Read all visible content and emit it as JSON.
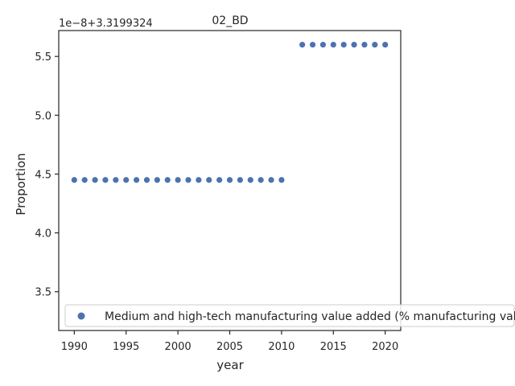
{
  "chart_data": {
    "type": "scatter",
    "title": "02_BD",
    "xlabel": "year",
    "ylabel": "Proportion",
    "offset_label": "1e−8+3.3199324",
    "xlim": [
      1988.5,
      2021.5
    ],
    "ylim": [
      3.17,
      5.72
    ],
    "xticks": [
      1990,
      1995,
      2000,
      2005,
      2010,
      2015,
      2020
    ],
    "yticks": [
      3.5,
      4.0,
      4.5,
      5.0,
      5.5
    ],
    "ytick_labels": [
      "3.5",
      "4.0",
      "4.5",
      "5.0",
      "5.5"
    ],
    "grid": false,
    "legend_position": "lower-center",
    "color": "#4c72b0",
    "series": [
      {
        "name": "Medium and high-tech manufacturing value added (% manufacturing value",
        "x": [
          1990,
          1991,
          1992,
          1993,
          1994,
          1995,
          1996,
          1997,
          1998,
          1999,
          2000,
          2001,
          2002,
          2003,
          2004,
          2005,
          2006,
          2007,
          2008,
          2009,
          2010,
          2012,
          2013,
          2014,
          2015,
          2016,
          2017,
          2018,
          2019,
          2020
        ],
        "y": [
          4.45,
          4.45,
          4.45,
          4.45,
          4.45,
          4.45,
          4.45,
          4.45,
          4.45,
          4.45,
          4.45,
          4.45,
          4.45,
          4.45,
          4.45,
          4.45,
          4.45,
          4.45,
          4.45,
          4.45,
          4.45,
          5.6,
          5.6,
          5.6,
          5.6,
          5.6,
          5.6,
          5.6,
          5.6,
          5.6
        ]
      }
    ]
  }
}
